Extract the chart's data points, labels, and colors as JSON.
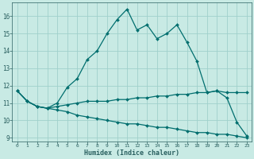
{
  "xlabel": "Humidex (Indice chaleur)",
  "xlim": [
    -0.5,
    23.5
  ],
  "ylim": [
    8.8,
    16.8
  ],
  "yticks": [
    9,
    10,
    11,
    12,
    13,
    14,
    15,
    16
  ],
  "xticks": [
    0,
    1,
    2,
    3,
    4,
    5,
    6,
    7,
    8,
    9,
    10,
    11,
    12,
    13,
    14,
    15,
    16,
    17,
    18,
    19,
    20,
    21,
    22,
    23
  ],
  "bg_color": "#c8eae4",
  "line_color": "#006e6e",
  "grid_color": "#a0d0cc",
  "line1_x": [
    0,
    1,
    2,
    3,
    4,
    5,
    6,
    7,
    8,
    9,
    10,
    11,
    12,
    13,
    14,
    15,
    16,
    17,
    18,
    19,
    20,
    21,
    22,
    23
  ],
  "line1_y": [
    11.7,
    11.1,
    10.8,
    10.7,
    11.0,
    11.9,
    12.4,
    13.5,
    14.0,
    15.0,
    15.8,
    16.4,
    15.2,
    15.5,
    14.7,
    15.0,
    15.5,
    14.5,
    13.4,
    11.6,
    11.7,
    11.3,
    9.9,
    9.1
  ],
  "line2_x": [
    0,
    1,
    2,
    3,
    4,
    5,
    6,
    7,
    8,
    9,
    10,
    11,
    12,
    13,
    14,
    15,
    16,
    17,
    18,
    19,
    20,
    21,
    22,
    23
  ],
  "line2_y": [
    11.7,
    11.1,
    10.8,
    10.7,
    10.8,
    10.9,
    11.0,
    11.1,
    11.1,
    11.1,
    11.2,
    11.2,
    11.3,
    11.3,
    11.4,
    11.4,
    11.5,
    11.5,
    11.6,
    11.6,
    11.7,
    11.6,
    11.6,
    11.6
  ],
  "line3_x": [
    0,
    1,
    2,
    3,
    4,
    5,
    6,
    7,
    8,
    9,
    10,
    11,
    12,
    13,
    14,
    15,
    16,
    17,
    18,
    19,
    20,
    21,
    22,
    23
  ],
  "line3_y": [
    11.7,
    11.1,
    10.8,
    10.7,
    10.6,
    10.5,
    10.3,
    10.2,
    10.1,
    10.0,
    9.9,
    9.8,
    9.8,
    9.7,
    9.6,
    9.6,
    9.5,
    9.4,
    9.3,
    9.3,
    9.2,
    9.2,
    9.1,
    9.0
  ]
}
